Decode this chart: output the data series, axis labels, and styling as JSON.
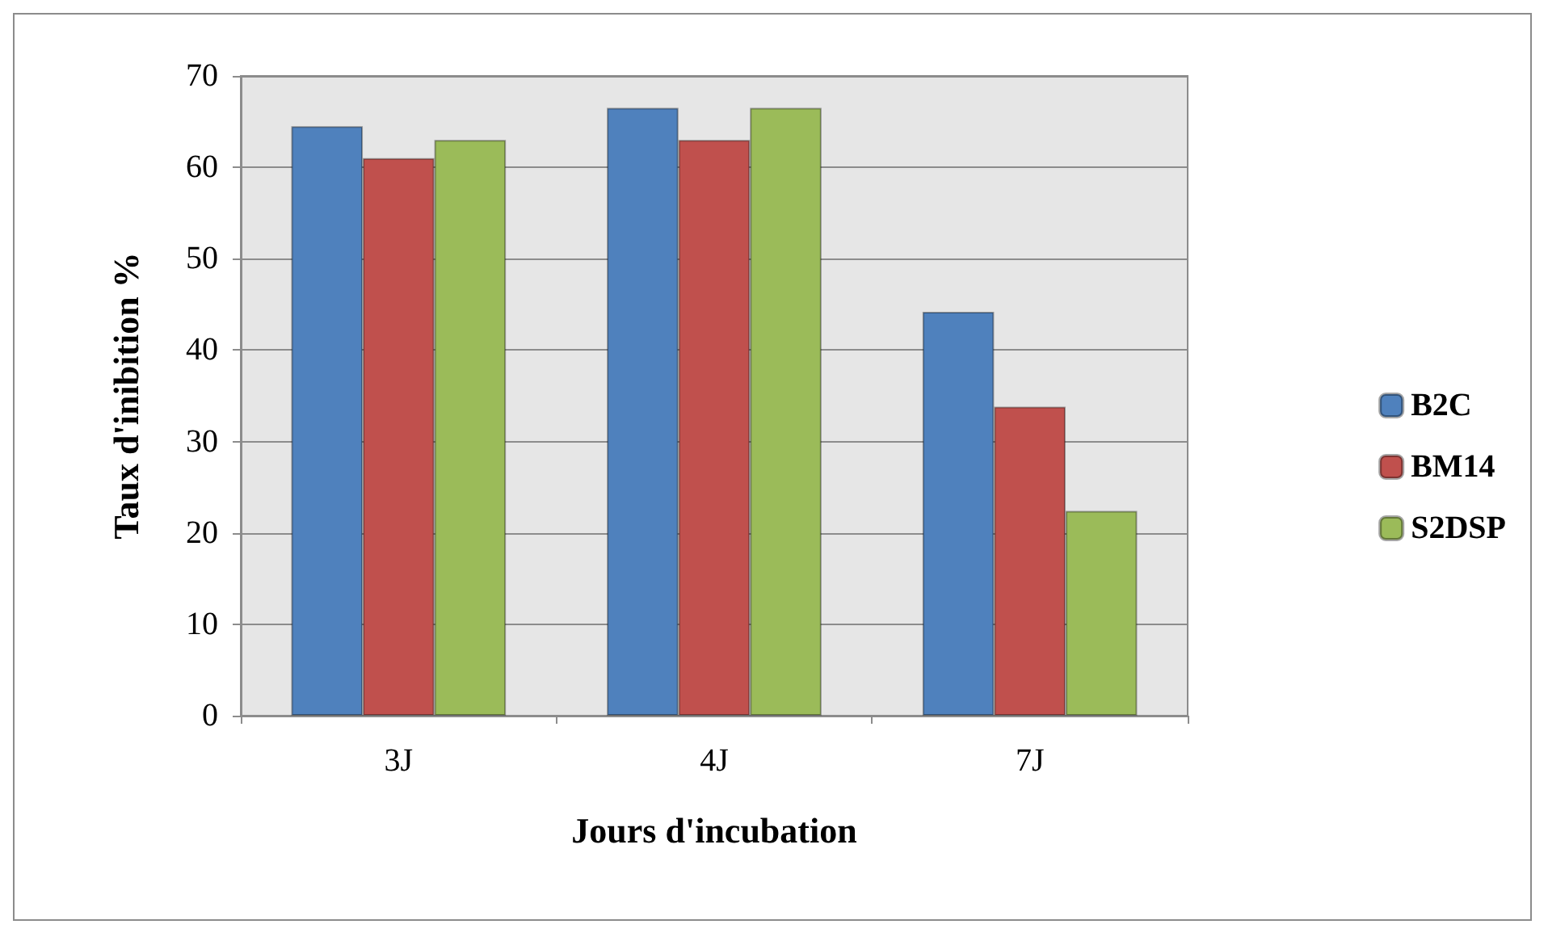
{
  "chart_data": {
    "type": "bar",
    "xlabel": "Jours d'incubation",
    "ylabel": "Taux d'inibition %",
    "categories": [
      "3J",
      "4J",
      "7J"
    ],
    "series": [
      {
        "name": "B2C",
        "color": "#4f81bd",
        "values": [
          64.5,
          66.5,
          44.2
        ]
      },
      {
        "name": "BM14",
        "color": "#c0504d",
        "values": [
          61,
          63,
          33.8
        ]
      },
      {
        "name": "S2DSP",
        "color": "#9bbb59",
        "values": [
          63,
          66.5,
          22.4
        ]
      }
    ],
    "ylim": [
      0,
      70
    ],
    "yticks": [
      0,
      10,
      20,
      30,
      40,
      50,
      60,
      70
    ],
    "grid": "y",
    "legend": "right"
  }
}
